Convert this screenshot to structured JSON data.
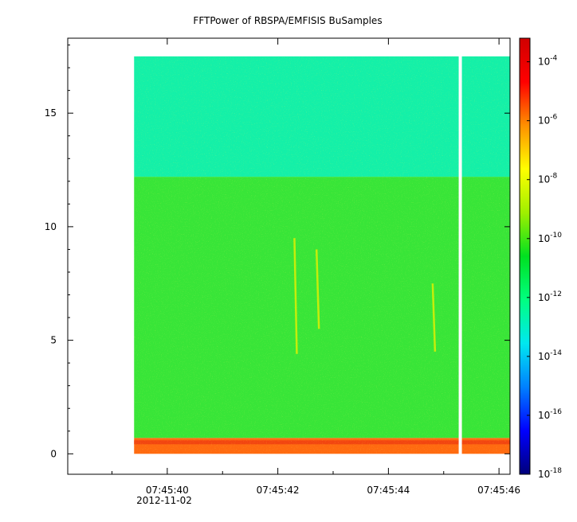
{
  "chart_data": {
    "type": "heatmap",
    "title": "FFTPower of RBSPA/EMFISIS  BuSamples",
    "xlabel": "",
    "ylabel": "",
    "x_ticks": [
      "07:45:40",
      "07:45:42",
      "07:45:44",
      "07:45:46"
    ],
    "x_tick_values": [
      40,
      42,
      44,
      46
    ],
    "x_date_label": "2012-11-02",
    "xlim": [
      38.2,
      46.2
    ],
    "y_ticks": [
      "0",
      "5",
      "10",
      "15"
    ],
    "y_tick_values": [
      0,
      5,
      10,
      15
    ],
    "ylim": [
      -0.9,
      18.3
    ],
    "data_x_range": [
      39.4,
      46.2
    ],
    "data_y_range": [
      0,
      17.5
    ],
    "gap_x": 45.3,
    "colorbar": {
      "scale": "log",
      "range_exponent": [
        -18,
        -3.2
      ],
      "tick_labels": [
        "10",
        "10",
        "10",
        "10",
        "10",
        "10",
        "10",
        "10"
      ],
      "tick_exponents": [
        "-4",
        "-6",
        "-8",
        "-10",
        "-12",
        "-14",
        "-16",
        "-18"
      ],
      "tick_values": [
        -4,
        -6,
        -8,
        -10,
        -12,
        -14,
        -16,
        -18
      ],
      "colors": [
        "#00007a",
        "#0000ff",
        "#0080ff",
        "#00e8f0",
        "#00ff80",
        "#00e020",
        "#a0f000",
        "#ffff00",
        "#ff9000",
        "#ff0000",
        "#d00000"
      ]
    },
    "bands": [
      {
        "y_range": [
          0,
          0.7
        ],
        "log_power": -7.5,
        "color": "#ff6a10"
      },
      {
        "y_range": [
          0.7,
          12.2
        ],
        "log_power": -10.5,
        "color": "#38e538"
      },
      {
        "y_range": [
          12.2,
          17.5
        ],
        "log_power": -12.3,
        "color": "#14f0a8"
      }
    ],
    "emissions": [
      {
        "x": 42.3,
        "y_range": [
          4.4,
          9.5
        ]
      },
      {
        "x": 42.7,
        "y_range": [
          5.5,
          9.0
        ]
      },
      {
        "x": 44.8,
        "y_range": [
          4.5,
          7.5
        ]
      }
    ]
  }
}
